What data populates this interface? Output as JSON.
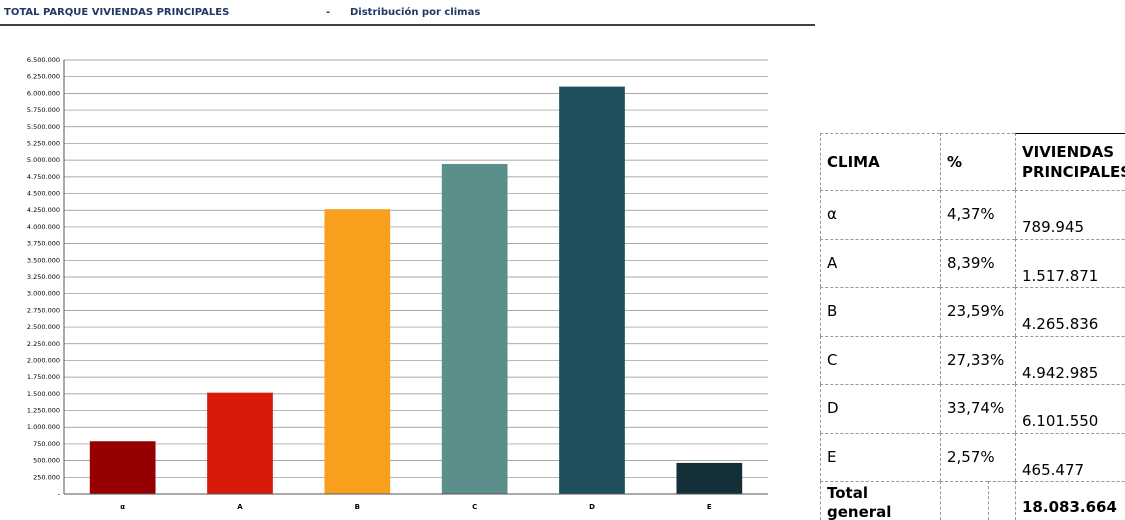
{
  "chart_data": {
    "type": "bar",
    "title": "TOTAL PARQUE VIVIENDAS PRINCIPALES",
    "separator": "-",
    "subtitle": "Distribución por climas",
    "categories": [
      "α",
      "A",
      "B",
      "C",
      "D",
      "E"
    ],
    "values": [
      789945,
      1517871,
      4265836,
      4942985,
      6101550,
      465477
    ],
    "colors": [
      "#960000",
      "#d71a0a",
      "#f89f1e",
      "#5b8f8b",
      "#1e505c",
      "#142f37"
    ],
    "ylim": [
      0,
      6500000
    ],
    "yticks": [
      {
        "value": 0,
        "label": "-"
      },
      {
        "value": 250000,
        "label": "250.000"
      },
      {
        "value": 500000,
        "label": "500.000"
      },
      {
        "value": 750000,
        "label": "750.000"
      },
      {
        "value": 1000000,
        "label": "1.000.000"
      },
      {
        "value": 1250000,
        "label": "1.250.000"
      },
      {
        "value": 1500000,
        "label": "1.500.000"
      },
      {
        "value": 1750000,
        "label": "1.750.000"
      },
      {
        "value": 2000000,
        "label": "2.000.000"
      },
      {
        "value": 2250000,
        "label": "2.250.000"
      },
      {
        "value": 2500000,
        "label": "2.500.000"
      },
      {
        "value": 2750000,
        "label": "2.750.000"
      },
      {
        "value": 3000000,
        "label": "3.000.000"
      },
      {
        "value": 3250000,
        "label": "3.250.000"
      },
      {
        "value": 3500000,
        "label": "3.500.000"
      },
      {
        "value": 3750000,
        "label": "3.750.000"
      },
      {
        "value": 4000000,
        "label": "4.000.000"
      },
      {
        "value": 4250000,
        "label": "4.250.000"
      },
      {
        "value": 4500000,
        "label": "4.500.000"
      },
      {
        "value": 4750000,
        "label": "4.750.000"
      },
      {
        "value": 5000000,
        "label": "5.000.000"
      },
      {
        "value": 5250000,
        "label": "5.250.000"
      },
      {
        "value": 5500000,
        "label": "5.500.000"
      },
      {
        "value": 5750000,
        "label": "5.750.000"
      },
      {
        "value": 6000000,
        "label": "6.000.000"
      },
      {
        "value": 6250000,
        "label": "6.250.000"
      },
      {
        "value": 6500000,
        "label": "6.500.000"
      }
    ],
    "grid": true
  },
  "table": {
    "header": [
      "CLIMA",
      "%",
      "VIVIENDAS PRINCIPALES"
    ],
    "rows": [
      [
        "α",
        "4,37%",
        "789.945"
      ],
      [
        "A",
        "8,39%",
        "1.517.871"
      ],
      [
        "B",
        "23,59%",
        "4.265.836"
      ],
      [
        "C",
        "27,33%",
        "4.942.985"
      ],
      [
        "D",
        "33,74%",
        "6.101.550"
      ],
      [
        "E",
        "2,57%",
        "465.477"
      ]
    ],
    "total": [
      "Total general",
      "18.083.664"
    ]
  }
}
